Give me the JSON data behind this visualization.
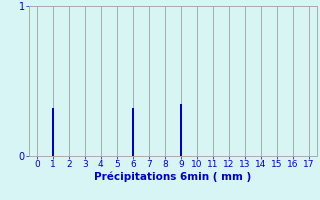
{
  "x_values": [
    0,
    1,
    2,
    3,
    4,
    5,
    6,
    7,
    8,
    9,
    10,
    11,
    12,
    13,
    14,
    15,
    16,
    17
  ],
  "bar_values": [
    0,
    0.32,
    0,
    0,
    0,
    0,
    0.32,
    0,
    0,
    0.35,
    0,
    0,
    0,
    0,
    0,
    0,
    0,
    0
  ],
  "bar_color": "#0000cc",
  "background_color": "#d8f5f5",
  "plot_bg_color": "#d8f5f5",
  "grid_color": "#aaaaaa",
  "xlabel": "Précipitations 6min ( mm )",
  "xlabel_color": "#0000cc",
  "tick_color": "#0000cc",
  "label_color": "#0000cc",
  "ylim": [
    0,
    1
  ],
  "xlim": [
    -0.5,
    17.5
  ],
  "yticks": [
    0,
    1
  ],
  "xticks": [
    0,
    1,
    2,
    3,
    4,
    5,
    6,
    7,
    8,
    9,
    10,
    11,
    12,
    13,
    14,
    15,
    16,
    17
  ],
  "bar_width": 0.15,
  "figsize": [
    3.2,
    2.0
  ],
  "dpi": 100
}
